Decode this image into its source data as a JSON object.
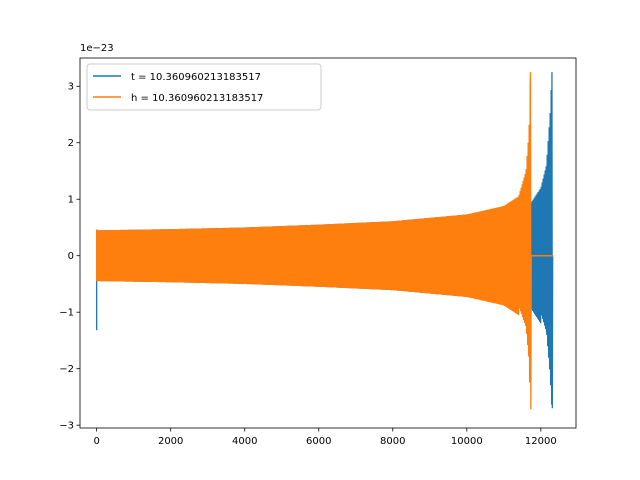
{
  "chart_data": {
    "type": "line",
    "offset_label": "1e−23",
    "x_ticks": [
      0,
      2000,
      4000,
      6000,
      8000,
      10000,
      12000
    ],
    "x_tick_labels": [
      "0",
      "2000",
      "4000",
      "6000",
      "8000",
      "10000",
      "12000"
    ],
    "y_ticks": [
      -3,
      -2,
      -1,
      0,
      1,
      2,
      3
    ],
    "y_tick_labels": [
      "−3",
      "−2",
      "−1",
      "0",
      "1",
      "2",
      "3"
    ],
    "xlim": [
      -450,
      12950
    ],
    "ylim": [
      -3.05,
      3.5
    ],
    "legend_position": "upper-left",
    "grid": false,
    "series": [
      {
        "name": "t = 10.360960213183517",
        "color": "#1f77b4",
        "type": "chirp-envelope",
        "envelope": [
          [
            0,
            0.45
          ],
          [
            2000,
            0.47
          ],
          [
            4000,
            0.5
          ],
          [
            6000,
            0.55
          ],
          [
            8000,
            0.61
          ],
          [
            10000,
            0.73
          ],
          [
            11000,
            0.85
          ],
          [
            11700,
            0.9
          ],
          [
            12000,
            1.2
          ],
          [
            12150,
            1.6
          ],
          [
            12250,
            2.5
          ],
          [
            12300,
            3.25
          ],
          [
            12330,
            0.0
          ]
        ],
        "start_spike": {
          "x": 0,
          "y_min": -1.32,
          "y_max": 0.45
        },
        "peak": {
          "x": 12300,
          "y_max": 3.25,
          "y_min": -2.7
        }
      },
      {
        "name": "h = 10.360960213183517",
        "color": "#ff7f0e",
        "type": "chirp-envelope",
        "envelope": [
          [
            0,
            0.45
          ],
          [
            2000,
            0.47
          ],
          [
            4000,
            0.5
          ],
          [
            6000,
            0.55
          ],
          [
            8000,
            0.61
          ],
          [
            10000,
            0.73
          ],
          [
            11000,
            0.88
          ],
          [
            11400,
            1.05
          ],
          [
            11600,
            1.5
          ],
          [
            11680,
            2.2
          ],
          [
            11720,
            3.25
          ],
          [
            11735,
            0.0
          ]
        ],
        "start_spike": {
          "x": 0,
          "y_min": -0.45,
          "y_max": 0.45
        },
        "peak": {
          "x": 11720,
          "y_max": 3.25,
          "y_min": -2.72
        },
        "tail": {
          "x_start": 11740,
          "x_end": 12330,
          "y": 0.0
        }
      }
    ]
  }
}
